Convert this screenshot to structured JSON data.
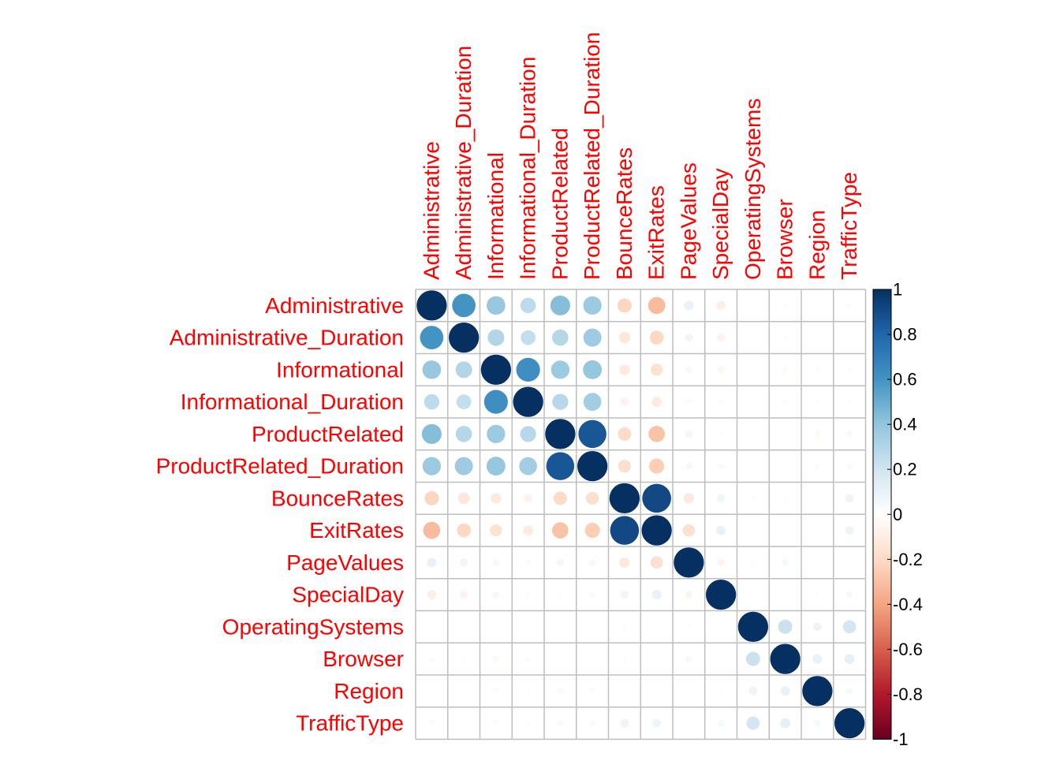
{
  "chart_data": {
    "type": "heatmap",
    "variables": [
      "Administrative",
      "Administrative_Duration",
      "Informational",
      "Informational_Duration",
      "ProductRelated",
      "ProductRelated_Duration",
      "BounceRates",
      "ExitRates",
      "PageValues",
      "SpecialDay",
      "OperatingSystems",
      "Browser",
      "Region",
      "TrafficType"
    ],
    "matrix": [
      [
        1.0,
        0.6,
        0.38,
        0.26,
        0.43,
        0.37,
        -0.22,
        -0.32,
        0.1,
        -0.09,
        -0.01,
        -0.03,
        -0.01,
        -0.03
      ],
      [
        0.6,
        1.0,
        0.3,
        0.24,
        0.29,
        0.36,
        -0.14,
        -0.21,
        0.07,
        -0.07,
        -0.01,
        -0.02,
        -0.01,
        -0.01
      ],
      [
        0.38,
        0.3,
        1.0,
        0.62,
        0.37,
        0.39,
        -0.12,
        -0.16,
        0.05,
        -0.05,
        -0.01,
        -0.04,
        -0.03,
        -0.03
      ],
      [
        0.26,
        0.24,
        0.62,
        1.0,
        0.28,
        0.35,
        -0.07,
        -0.11,
        0.03,
        -0.03,
        -0.01,
        -0.03,
        -0.02,
        -0.02
      ],
      [
        0.43,
        0.29,
        0.37,
        0.28,
        1.0,
        0.86,
        -0.2,
        -0.29,
        0.06,
        -0.02,
        0.0,
        -0.01,
        -0.04,
        -0.04
      ],
      [
        0.37,
        0.36,
        0.39,
        0.35,
        0.86,
        1.0,
        -0.18,
        -0.25,
        0.05,
        -0.04,
        0.0,
        -0.01,
        -0.03,
        -0.04
      ],
      [
        -0.22,
        -0.14,
        -0.12,
        -0.07,
        -0.2,
        -0.18,
        1.0,
        0.91,
        -0.12,
        0.07,
        0.02,
        -0.02,
        0.01,
        0.08
      ],
      [
        -0.32,
        -0.21,
        -0.16,
        -0.11,
        -0.29,
        -0.25,
        0.91,
        1.0,
        -0.17,
        0.1,
        0.01,
        -0.01,
        0.0,
        0.08
      ],
      [
        0.1,
        0.07,
        0.05,
        0.03,
        0.06,
        0.05,
        -0.12,
        -0.17,
        1.0,
        -0.06,
        0.02,
        0.05,
        0.01,
        0.01
      ],
      [
        -0.09,
        -0.07,
        -0.05,
        -0.03,
        -0.02,
        -0.04,
        0.07,
        0.1,
        -0.06,
        1.0,
        0.01,
        0.0,
        -0.02,
        0.05
      ],
      [
        -0.01,
        -0.01,
        -0.01,
        -0.01,
        0.0,
        0.0,
        0.02,
        0.01,
        0.02,
        0.01,
        1.0,
        0.22,
        0.08,
        0.19
      ],
      [
        -0.03,
        -0.02,
        -0.04,
        -0.03,
        -0.01,
        -0.01,
        -0.02,
        -0.01,
        0.05,
        0.0,
        0.22,
        1.0,
        0.1,
        0.11
      ],
      [
        -0.01,
        -0.01,
        -0.03,
        -0.02,
        -0.04,
        -0.03,
        0.01,
        0.0,
        0.01,
        -0.02,
        0.08,
        0.1,
        1.0,
        0.05
      ],
      [
        -0.03,
        -0.01,
        -0.03,
        -0.02,
        -0.04,
        -0.04,
        0.08,
        0.08,
        0.01,
        0.05,
        0.19,
        0.11,
        0.05,
        1.0
      ]
    ],
    "scale": {
      "min": -1,
      "max": 1,
      "ticks": [
        "1",
        "0.8",
        "0.6",
        "0.4",
        "0.2",
        "0",
        "-0.2",
        "-0.4",
        "-0.6",
        "-0.8",
        "-1"
      ]
    },
    "colors": {
      "label": "#FF0000",
      "grid": "#BEBEBE",
      "palette": [
        "#67001F",
        "#B2182B",
        "#D6604D",
        "#F4A582",
        "#FDDBC7",
        "#FFFFFF",
        "#D1E5F0",
        "#92C5DE",
        "#4393C3",
        "#2166AC",
        "#053061"
      ]
    }
  }
}
